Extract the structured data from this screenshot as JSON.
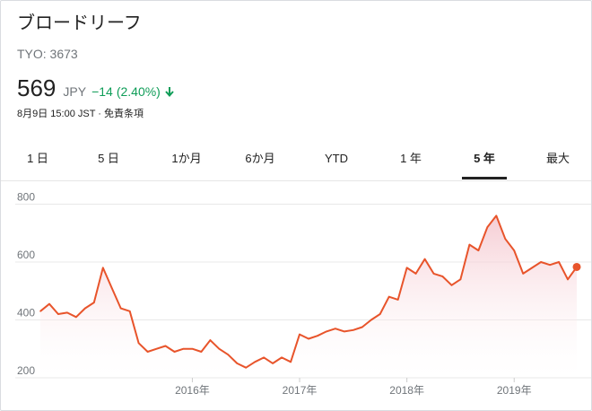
{
  "header": {
    "company_name": "ブロードリーフ",
    "ticker": "TYO: 3673",
    "price": "569",
    "currency": "JPY",
    "change": "−14",
    "change_pct": "(2.40%)",
    "change_icon": "down-arrow-icon",
    "change_color": "#0f9d58",
    "timestamp": "8月9日 15:00 JST · 免責条項"
  },
  "tabs": [
    {
      "label": "1 日",
      "selected": false
    },
    {
      "label": "5 日",
      "selected": false
    },
    {
      "label": "1か月",
      "selected": false
    },
    {
      "label": "6か月",
      "selected": false
    },
    {
      "label": "YTD",
      "selected": false
    },
    {
      "label": "1 年",
      "selected": false
    },
    {
      "label": "5 年",
      "selected": true
    },
    {
      "label": "最大",
      "selected": false
    }
  ],
  "chart_data": {
    "type": "area",
    "line_color": "#e8542b",
    "fill_color": "#f4c4cc",
    "grid": true,
    "ylim": [
      200,
      820
    ],
    "yticks": [
      200,
      400,
      600,
      800
    ],
    "ytick_labels": [
      "200",
      "400",
      "600",
      "800"
    ],
    "xlim": [
      "2014-08",
      "2019-08"
    ],
    "xticks": [
      "2016-01",
      "2017-01",
      "2018-01",
      "2019-01"
    ],
    "xtick_labels": [
      "2016年",
      "2017年",
      "2018年",
      "2019年"
    ],
    "series": [
      {
        "x": [
          "2014-08",
          "2014-09",
          "2014-10",
          "2014-11",
          "2014-12",
          "2015-01",
          "2015-02",
          "2015-03",
          "2015-04",
          "2015-05",
          "2015-06",
          "2015-07",
          "2015-08",
          "2015-09",
          "2015-10",
          "2015-11",
          "2015-12",
          "2016-01",
          "2016-02",
          "2016-03",
          "2016-04",
          "2016-05",
          "2016-06",
          "2016-07",
          "2016-08",
          "2016-09",
          "2016-10",
          "2016-11",
          "2016-12",
          "2017-01",
          "2017-02",
          "2017-03",
          "2017-04",
          "2017-05",
          "2017-06",
          "2017-07",
          "2017-08",
          "2017-09",
          "2017-10",
          "2017-11",
          "2017-12",
          "2018-01",
          "2018-02",
          "2018-03",
          "2018-04",
          "2018-05",
          "2018-06",
          "2018-07",
          "2018-08",
          "2018-09",
          "2018-10",
          "2018-11",
          "2018-12",
          "2019-01",
          "2019-02",
          "2019-03",
          "2019-04",
          "2019-05",
          "2019-06",
          "2019-07",
          "2019-08"
        ],
        "values": [
          430,
          455,
          420,
          425,
          410,
          440,
          460,
          580,
          510,
          440,
          430,
          320,
          290,
          300,
          310,
          290,
          300,
          300,
          290,
          330,
          300,
          280,
          250,
          235,
          255,
          270,
          250,
          270,
          255,
          350,
          335,
          345,
          360,
          370,
          360,
          365,
          375,
          400,
          420,
          480,
          470,
          580,
          560,
          610,
          560,
          550,
          520,
          540,
          660,
          640,
          720,
          760,
          680,
          640,
          560,
          580,
          600,
          590,
          600,
          540,
          583
        ]
      }
    ]
  }
}
